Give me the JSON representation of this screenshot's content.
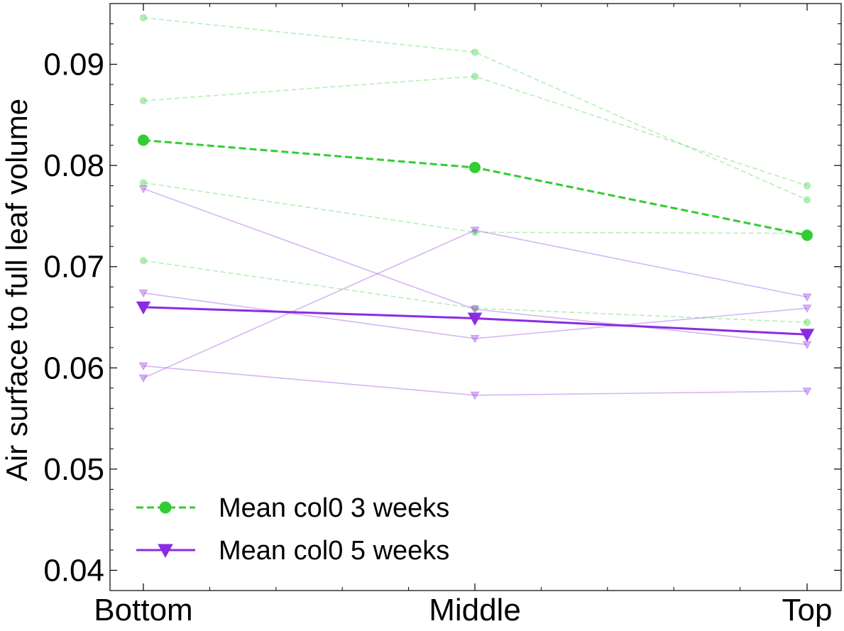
{
  "chart_data": {
    "type": "line",
    "categories": [
      "Bottom",
      "Middle",
      "Top"
    ],
    "xlabel": "",
    "ylabel": "Air surface to full leaf volume",
    "ylim": [
      0.038,
      0.096
    ],
    "yticks": [
      0.04,
      0.05,
      0.06,
      0.07,
      0.08,
      0.09
    ],
    "ytick_labels": [
      "0.04",
      "0.05",
      "0.06",
      "0.07",
      "0.08",
      "0.09"
    ],
    "grid": false,
    "legend_position": "lower-left",
    "series": [
      {
        "name": "Mean col0 3 weeks",
        "values": [
          0.0825,
          0.0798,
          0.0731
        ],
        "color": "#32cd32",
        "linestyle": "dashed",
        "marker": "circle",
        "role": "mean"
      },
      {
        "name": "Mean col0 5 weeks",
        "values": [
          0.066,
          0.0649,
          0.0633
        ],
        "color": "#8a2be2",
        "linestyle": "solid",
        "marker": "triangle-down",
        "role": "mean"
      },
      {
        "values": [
          0.0946,
          0.0912,
          0.0766
        ],
        "color": "#32cd32",
        "linestyle": "dashed",
        "marker": "circle",
        "role": "individual"
      },
      {
        "values": [
          0.0864,
          0.0888,
          0.078
        ],
        "color": "#32cd32",
        "linestyle": "dashed",
        "marker": "circle",
        "role": "individual"
      },
      {
        "values": [
          0.0783,
          0.0734,
          0.0733
        ],
        "color": "#32cd32",
        "linestyle": "dashed",
        "marker": "circle",
        "role": "individual"
      },
      {
        "values": [
          0.0706,
          0.0659,
          0.0645
        ],
        "color": "#32cd32",
        "linestyle": "dashed",
        "marker": "circle",
        "role": "individual"
      },
      {
        "values": [
          0.0777,
          0.0658,
          0.0623
        ],
        "color": "#8a2be2",
        "linestyle": "solid",
        "marker": "triangle-down",
        "role": "individual"
      },
      {
        "values": [
          0.059,
          0.0736,
          0.067
        ],
        "color": "#8a2be2",
        "linestyle": "solid",
        "marker": "triangle-down",
        "role": "individual"
      },
      {
        "values": [
          0.0674,
          0.0629,
          0.0659
        ],
        "color": "#8a2be2",
        "linestyle": "solid",
        "marker": "triangle-down",
        "role": "individual"
      },
      {
        "values": [
          0.0602,
          0.0573,
          0.0577
        ],
        "color": "#8a2be2",
        "linestyle": "solid",
        "marker": "triangle-down",
        "role": "individual"
      }
    ]
  }
}
